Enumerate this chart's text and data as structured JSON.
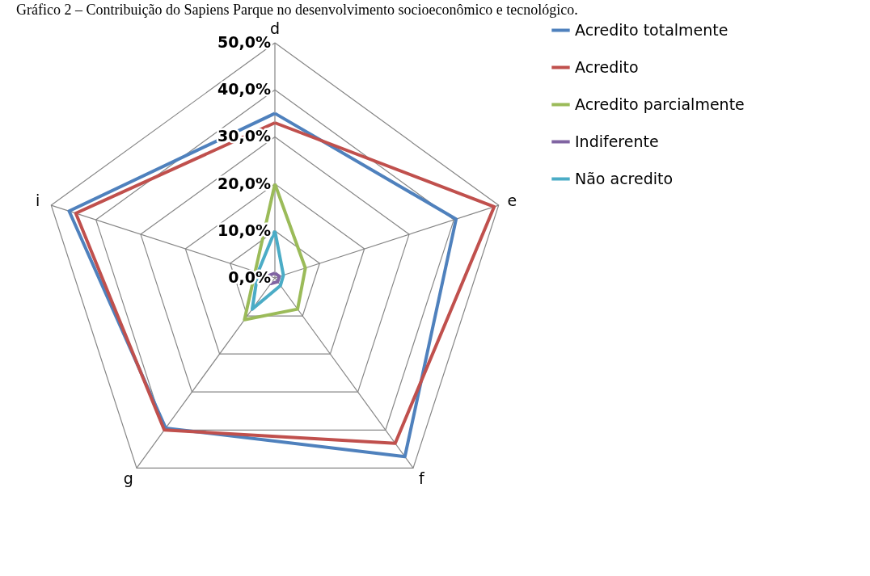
{
  "chart_data": {
    "type": "radar",
    "title": "Gráfico 2 – Contribuição do Sapiens Parque no desenvolvimento socioeconômico e tecnológico.",
    "categories": [
      "d",
      "e",
      "f",
      "g",
      "i"
    ],
    "ylim": [
      0,
      50
    ],
    "yticks": [
      {
        "value": 0,
        "label": "0,0%"
      },
      {
        "value": 10,
        "label": "10,0%"
      },
      {
        "value": 20,
        "label": "20,0%"
      },
      {
        "value": 30,
        "label": "30,0%"
      },
      {
        "value": 40,
        "label": "40,0%"
      },
      {
        "value": 50,
        "label": "50,0%"
      }
    ],
    "grid": true,
    "legend": "right",
    "marker": "none",
    "series": [
      {
        "name": "Acredito totalmente",
        "color": "#4f81bd",
        "values": [
          35,
          40.5,
          47,
          39.5,
          46
        ]
      },
      {
        "name": "Acredito",
        "color": "#c0504d",
        "values": [
          33,
          49,
          43.5,
          40,
          44.5
        ]
      },
      {
        "name": "Acredito parcialmente",
        "color": "#9bbb59",
        "values": [
          20,
          6.8,
          8.2,
          11,
          4.4
        ]
      },
      {
        "name": "Indiferente",
        "color": "#8064a2",
        "values": [
          1,
          1,
          1,
          1.5,
          1.5
        ]
      },
      {
        "name": "Não acredito",
        "color": "#4bacc6",
        "values": [
          10,
          1.9,
          2,
          8.2,
          3.8
        ]
      }
    ]
  }
}
